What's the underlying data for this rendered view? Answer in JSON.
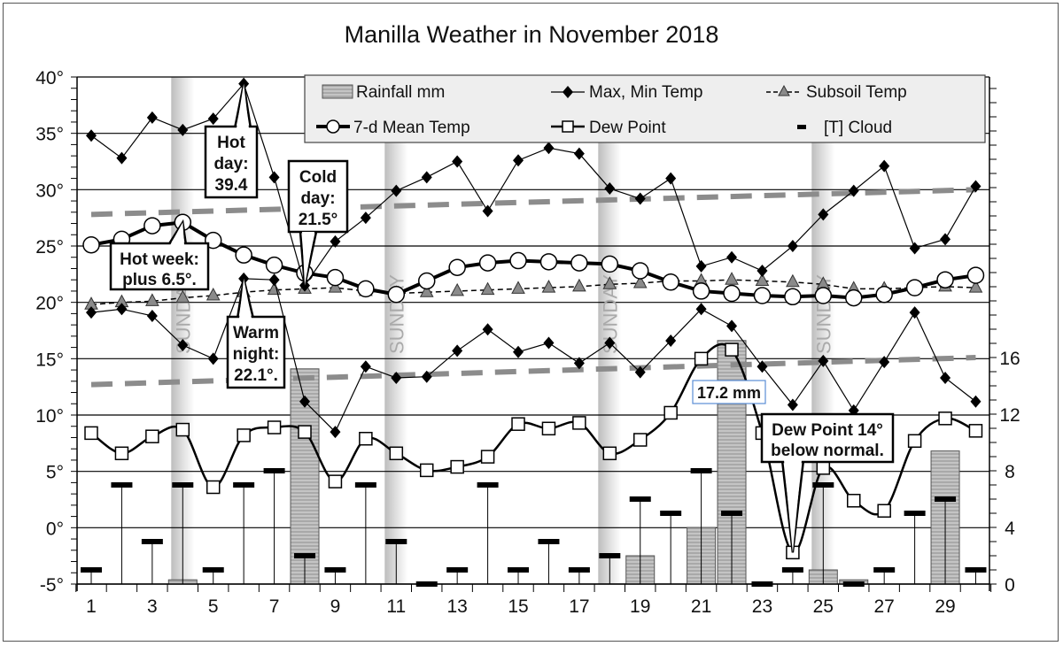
{
  "chart_data": {
    "type": "line",
    "title": "Manilla Weather in November 2018",
    "xlabel": "",
    "ylabel": "",
    "y_left": {
      "ticks": [
        "40°",
        "35°",
        "30°",
        "25°",
        "20°",
        "15°",
        "10°",
        "5°",
        "0°",
        "-5°"
      ],
      "range": [
        -5,
        40
      ]
    },
    "y_right": {
      "ticks": [
        "16",
        "12",
        "8",
        "4",
        "0"
      ],
      "range": [
        0,
        16
      ]
    },
    "x": [
      1,
      2,
      3,
      4,
      5,
      6,
      7,
      8,
      9,
      10,
      11,
      12,
      13,
      14,
      15,
      16,
      17,
      18,
      19,
      20,
      21,
      22,
      23,
      24,
      25,
      26,
      27,
      28,
      29,
      30
    ],
    "x_tick_labels": [
      "1",
      "3",
      "5",
      "7",
      "9",
      "11",
      "13",
      "15",
      "17",
      "19",
      "21",
      "23",
      "25",
      "27",
      "29"
    ],
    "series": [
      {
        "name": "Rainfall mm",
        "type": "bar",
        "axis": "right",
        "values": [
          0,
          0,
          0,
          0.3,
          0,
          0,
          0,
          15.2,
          0,
          0,
          0,
          0,
          0,
          0,
          0,
          0,
          0,
          0,
          2.0,
          0,
          4.0,
          17.2,
          0,
          0,
          1.0,
          0.3,
          0,
          0,
          9.4,
          0
        ]
      },
      {
        "name": "Max Temp",
        "type": "line",
        "marker": "diamond",
        "values": [
          34.8,
          32.8,
          36.4,
          35.3,
          36.3,
          39.4,
          31.1,
          21.5,
          25.4,
          27.5,
          29.9,
          31.1,
          32.5,
          28.1,
          32.6,
          33.7,
          33.2,
          30.1,
          29.2,
          31.0,
          23.2,
          24.0,
          22.8,
          25.0,
          27.8,
          29.9,
          32.1,
          24.8,
          25.6,
          30.3
        ]
      },
      {
        "name": "Min Temp",
        "type": "line",
        "marker": "diamond",
        "values": [
          19.1,
          19.4,
          18.8,
          16.2,
          15.0,
          22.1,
          22.0,
          11.2,
          8.5,
          14.3,
          13.3,
          13.4,
          15.7,
          17.6,
          15.6,
          16.4,
          14.6,
          16.4,
          13.8,
          16.6,
          19.4,
          17.9,
          14.3,
          10.9,
          14.8,
          10.4,
          14.7,
          19.1,
          13.3,
          11.2
        ]
      },
      {
        "name": "Subsoil Temp",
        "type": "line",
        "marker": "triangle",
        "dash": "dashed",
        "values": [
          19.8,
          20.0,
          20.1,
          20.4,
          20.6,
          20.9,
          21.1,
          21.2,
          21.3,
          21.0,
          20.8,
          20.9,
          21.0,
          21.1,
          21.2,
          21.3,
          21.4,
          21.6,
          21.7,
          21.9,
          21.9,
          22.0,
          21.9,
          21.8,
          21.6,
          21.2,
          21.2,
          21.3,
          21.4,
          21.3
        ]
      },
      {
        "name": "7-d Mean Temp",
        "type": "line",
        "marker": "circle",
        "values": [
          25.1,
          25.6,
          26.8,
          27.1,
          25.5,
          24.2,
          23.3,
          22.6,
          22.2,
          21.2,
          20.7,
          21.9,
          23.1,
          23.5,
          23.7,
          23.6,
          23.5,
          23.4,
          22.8,
          21.8,
          21.0,
          20.8,
          20.6,
          20.5,
          20.6,
          20.4,
          20.7,
          21.3,
          22.0,
          22.4
        ]
      },
      {
        "name": "Dew Point",
        "type": "line",
        "marker": "square",
        "values": [
          8.4,
          6.6,
          8.1,
          8.7,
          3.6,
          8.2,
          8.9,
          8.5,
          4.1,
          7.9,
          6.6,
          5.1,
          5.4,
          6.3,
          9.2,
          8.8,
          9.3,
          6.6,
          7.8,
          10.2,
          15.0,
          15.8,
          8.4,
          -2.2,
          5.3,
          2.4,
          1.5,
          7.7,
          9.7,
          8.6
        ]
      },
      {
        "name": "[T] Cloud",
        "type": "stem",
        "axis": "right",
        "values": [
          1,
          7,
          3,
          7,
          1,
          7,
          8,
          2,
          1,
          7,
          3,
          0,
          1,
          7,
          1,
          3,
          1,
          2,
          6,
          5,
          8,
          5,
          0,
          1,
          7,
          0,
          1,
          5,
          6,
          1
        ]
      },
      {
        "name": "Normal Max",
        "type": "line",
        "dash": "long-dash",
        "color": "#888888",
        "values": [
          27.8,
          30.0
        ]
      },
      {
        "name": "Normal Min",
        "type": "line",
        "dash": "long-dash",
        "color": "#888888",
        "values": [
          12.7,
          15.1
        ]
      }
    ],
    "sundays": [
      4,
      11,
      18,
      25
    ],
    "annotations": [
      {
        "text": "Hot day: 39.4",
        "day": 6
      },
      {
        "text": "Cold day: 21.5°",
        "day": 8
      },
      {
        "text": "Hot week: plus 6.5°.",
        "day": 4
      },
      {
        "text": "Warm night: 22.1°.",
        "day": 6
      },
      {
        "text": "17.2 mm",
        "day": 22
      },
      {
        "text": "Dew Point 14° below normal.",
        "day": 24
      }
    ],
    "legend_position": "top-right",
    "grid": true
  },
  "title": "Manilla Weather in November 2018",
  "legend": {
    "rainfall": "Rainfall mm",
    "maxmin": "Max, Min Temp",
    "subsoil": "Subsoil Temp",
    "mean": "7-d Mean Temp",
    "dew": "Dew Point",
    "cloud": "[T] Cloud"
  },
  "sunday_label": "SUNDAY",
  "callouts": {
    "hot_day": [
      "Hot",
      "day:",
      "39.4"
    ],
    "cold_day": [
      "Cold",
      "day:",
      "21.5°"
    ],
    "hot_week": [
      "Hot week:",
      "plus 6.5°."
    ],
    "warm_night": [
      "Warm",
      "night:",
      "22.1°."
    ],
    "rain_label": "17.2 mm",
    "dew_point": [
      "Dew Point 14°",
      "below normal."
    ]
  },
  "colors": {
    "bar_fill": "#b8b8b8",
    "normal_line": "#8c8c8c",
    "subsoil_marker": "#8a8a8a",
    "sunday_band": "#c8c8c8",
    "legend_bg": "#eeeeee",
    "rain_label_border": "#5b8ed6"
  }
}
